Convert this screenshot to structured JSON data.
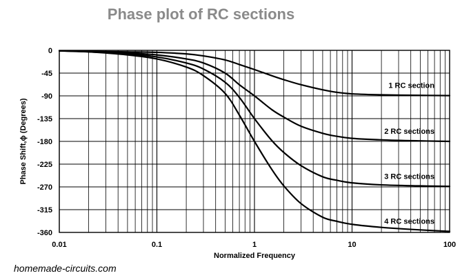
{
  "chart_data": {
    "type": "line",
    "title": "Phase plot of RC sections",
    "xlabel": "Normalized Frequency",
    "ylabel": "Phase Shift,ϕ  (Degrees)",
    "x_scale": "log",
    "xlim": [
      0.01,
      100
    ],
    "ylim": [
      -360,
      0
    ],
    "grid": true,
    "x_ticks": [
      {
        "value": 0.01,
        "label": "0.01"
      },
      {
        "value": 0.1,
        "label": "0.1"
      },
      {
        "value": 1,
        "label": "1"
      },
      {
        "value": 10,
        "label": "10"
      },
      {
        "value": 100,
        "label": "100"
      }
    ],
    "y_ticks": [
      {
        "value": 0,
        "label": "0"
      },
      {
        "value": -45,
        "label": "-45"
      },
      {
        "value": -90,
        "label": "-90"
      },
      {
        "value": -135,
        "label": "-135"
      },
      {
        "value": -180,
        "label": "-180"
      },
      {
        "value": -225,
        "label": "-225"
      },
      {
        "value": -270,
        "label": "-270"
      },
      {
        "value": -315,
        "label": "-315"
      },
      {
        "value": -360,
        "label": "-360"
      }
    ],
    "series": [
      {
        "name": "1 RC section",
        "x": [
          0.01,
          0.02,
          0.05,
          0.1,
          0.2,
          0.3,
          0.5,
          0.7,
          1,
          1.5,
          2,
          3,
          5,
          7,
          10,
          20,
          50,
          100
        ],
        "y": [
          -1,
          -2,
          -3,
          -4,
          -7,
          -11,
          -19,
          -28,
          -38,
          -50,
          -58,
          -68,
          -78,
          -83,
          -86,
          -88,
          -89,
          -89.5
        ]
      },
      {
        "name": "2 RC sections",
        "x": [
          0.01,
          0.02,
          0.05,
          0.1,
          0.2,
          0.3,
          0.5,
          0.7,
          1,
          1.5,
          2,
          3,
          5,
          7,
          10,
          20,
          50,
          100
        ],
        "y": [
          -1,
          -2,
          -5,
          -9,
          -17,
          -25,
          -45,
          -68,
          -90,
          -117,
          -132,
          -150,
          -164,
          -170,
          -174,
          -177,
          -179,
          -180
        ]
      },
      {
        "name": "3 RC sections",
        "x": [
          0.01,
          0.02,
          0.05,
          0.1,
          0.2,
          0.3,
          0.5,
          0.7,
          1,
          1.5,
          2,
          3,
          5,
          7,
          10,
          20,
          50,
          100
        ],
        "y": [
          -1,
          -3,
          -7,
          -13,
          -25,
          -37,
          -63,
          -93,
          -135,
          -178,
          -202,
          -228,
          -250,
          -257,
          -262,
          -266,
          -268,
          -269
        ]
      },
      {
        "name": "4 RC sections",
        "x": [
          0.01,
          0.02,
          0.05,
          0.1,
          0.2,
          0.3,
          0.5,
          0.7,
          1,
          1.5,
          2,
          3,
          5,
          7,
          10,
          20,
          50,
          100
        ],
        "y": [
          -1,
          -3,
          -9,
          -17,
          -33,
          -50,
          -85,
          -128,
          -180,
          -235,
          -268,
          -303,
          -330,
          -338,
          -344,
          -350,
          -355,
          -358
        ]
      }
    ]
  },
  "footer": {
    "watermark": "homemade-circuits.com"
  }
}
